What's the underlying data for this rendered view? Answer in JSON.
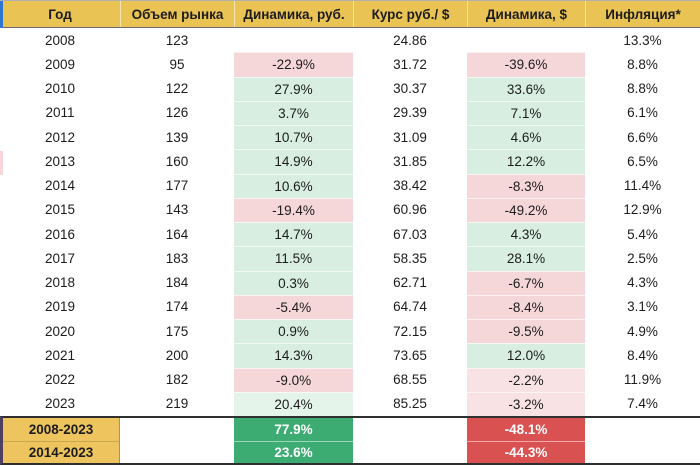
{
  "table": {
    "columns": [
      {
        "key": "year",
        "label": "Год"
      },
      {
        "key": "volume",
        "label": "Объем рынка"
      },
      {
        "key": "dyn_rub",
        "label": "Динамика, руб."
      },
      {
        "key": "rate",
        "label": "Курс руб./ $"
      },
      {
        "key": "dyn_usd",
        "label": "Динамика, $"
      },
      {
        "key": "inflation",
        "label": "Инфляция*"
      }
    ],
    "rows": [
      {
        "year": "2008",
        "volume": "123",
        "dyn_rub": "",
        "dyn_rub_tone": "none",
        "rate": "24.86",
        "dyn_usd": "",
        "dyn_usd_tone": "none",
        "inflation": "13.3%"
      },
      {
        "year": "2009",
        "volume": "95",
        "dyn_rub": "-22.9%",
        "dyn_rub_tone": "neg",
        "rate": "31.72",
        "dyn_usd": "-39.6%",
        "dyn_usd_tone": "neg",
        "inflation": "8.8%"
      },
      {
        "year": "2010",
        "volume": "122",
        "dyn_rub": "27.9%",
        "dyn_rub_tone": "pos",
        "rate": "30.37",
        "dyn_usd": "33.6%",
        "dyn_usd_tone": "pos",
        "inflation": "8.8%"
      },
      {
        "year": "2011",
        "volume": "126",
        "dyn_rub": "3.7%",
        "dyn_rub_tone": "pos",
        "rate": "29.39",
        "dyn_usd": "7.1%",
        "dyn_usd_tone": "pos",
        "inflation": "6.1%"
      },
      {
        "year": "2012",
        "volume": "139",
        "dyn_rub": "10.7%",
        "dyn_rub_tone": "pos",
        "rate": "31.09",
        "dyn_usd": "4.6%",
        "dyn_usd_tone": "pos",
        "inflation": "6.6%"
      },
      {
        "year": "2013",
        "volume": "160",
        "dyn_rub": "14.9%",
        "dyn_rub_tone": "pos",
        "rate": "31.85",
        "dyn_usd": "12.2%",
        "dyn_usd_tone": "pos",
        "inflation": "6.5%"
      },
      {
        "year": "2014",
        "volume": "177",
        "dyn_rub": "10.6%",
        "dyn_rub_tone": "pos",
        "rate": "38.42",
        "dyn_usd": "-8.3%",
        "dyn_usd_tone": "neg",
        "inflation": "11.4%"
      },
      {
        "year": "2015",
        "volume": "143",
        "dyn_rub": "-19.4%",
        "dyn_rub_tone": "neg",
        "rate": "60.96",
        "dyn_usd": "-49.2%",
        "dyn_usd_tone": "neg",
        "inflation": "12.9%"
      },
      {
        "year": "2016",
        "volume": "164",
        "dyn_rub": "14.7%",
        "dyn_rub_tone": "pos",
        "rate": "67.03",
        "dyn_usd": "4.3%",
        "dyn_usd_tone": "pos",
        "inflation": "5.4%"
      },
      {
        "year": "2017",
        "volume": "183",
        "dyn_rub": "11.5%",
        "dyn_rub_tone": "pos",
        "rate": "58.35",
        "dyn_usd": "28.1%",
        "dyn_usd_tone": "pos",
        "inflation": "2.5%"
      },
      {
        "year": "2018",
        "volume": "184",
        "dyn_rub": "0.3%",
        "dyn_rub_tone": "pos",
        "rate": "62.71",
        "dyn_usd": "-6.7%",
        "dyn_usd_tone": "neg",
        "inflation": "4.3%"
      },
      {
        "year": "2019",
        "volume": "174",
        "dyn_rub": "-5.4%",
        "dyn_rub_tone": "neg",
        "rate": "64.74",
        "dyn_usd": "-8.4%",
        "dyn_usd_tone": "neg",
        "inflation": "3.1%"
      },
      {
        "year": "2020",
        "volume": "175",
        "dyn_rub": "0.9%",
        "dyn_rub_tone": "pos",
        "rate": "72.15",
        "dyn_usd": "-9.5%",
        "dyn_usd_tone": "neg",
        "inflation": "4.9%"
      },
      {
        "year": "2021",
        "volume": "200",
        "dyn_rub": "14.3%",
        "dyn_rub_tone": "pos",
        "rate": "73.65",
        "dyn_usd": "12.0%",
        "dyn_usd_tone": "pos",
        "inflation": "8.4%"
      },
      {
        "year": "2022",
        "volume": "182",
        "dyn_rub": "-9.0%",
        "dyn_rub_tone": "neg",
        "rate": "68.55",
        "dyn_usd": "-2.2%",
        "dyn_usd_tone": "neg_light",
        "inflation": "11.9%"
      },
      {
        "year": "2023",
        "volume": "219",
        "dyn_rub": "20.4%",
        "dyn_rub_tone": "pos_light",
        "rate": "85.25",
        "dyn_usd": "-3.2%",
        "dyn_usd_tone": "neg_light",
        "inflation": "7.4%"
      }
    ],
    "totals": [
      {
        "period": "2008-2023",
        "dyn_rub": "77.9%",
        "dyn_usd": "-48.1%"
      },
      {
        "period": "2014-2023",
        "dyn_rub": "23.6%",
        "dyn_usd": "-44.3%"
      }
    ]
  },
  "colors": {
    "header_bg": "#EAC355",
    "gold": "#EDC45E",
    "pos": "#D7EEE1",
    "pos_light": "#E5F4EB",
    "neg": "#F5D6D9",
    "neg_light": "#F9E2E4",
    "total_green": "#3CAC72",
    "total_red": "#D95151",
    "blue_strip": "#2F76D2"
  }
}
